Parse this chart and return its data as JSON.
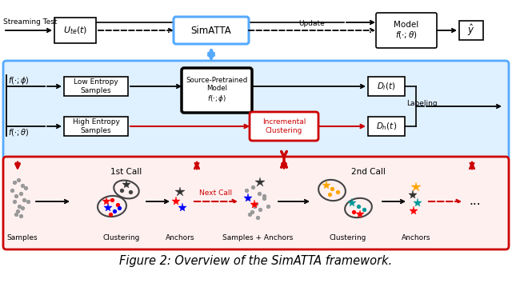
{
  "title": "Figure 2: Overview of the SimATTA framework.",
  "title_fontsize": 10.5,
  "fig_width": 6.4,
  "fig_height": 3.54,
  "bg_color": "#ffffff",
  "top": {
    "streaming_test": "Streaming Test",
    "ute": "$U_{te}(t)$",
    "simatta": "SimATTA",
    "model": "Model\n$f(\\cdot;\\theta)$",
    "yhat": "$\\hat{y}$",
    "update": "Update"
  },
  "mid": {
    "bg": "#dff0ff",
    "border": "#55aaff",
    "fphi": "$f(\\cdot;\\phi)$",
    "ftheta": "$f(\\cdot;\\theta)$",
    "low": "Low Entropy\nSamples",
    "high": "High Entropy\nSamples",
    "src": "Source-Pretrained\nModel\n$f(\\cdot;\\phi)$",
    "inc": "Incremental\nClustering",
    "dl": "$D_l(t)$",
    "dh": "$D_h(t)$",
    "labeling": "Labeling"
  },
  "bot": {
    "bg": "#fff0f0",
    "border": "#cc0000",
    "call1": "1st Call",
    "call2": "2nd Call",
    "next_call": "Next Call",
    "lbl_samples": "Samples",
    "lbl_clustering": "Clustering",
    "lbl_anchors": "Anchors",
    "lbl_sa": "Samples + Anchors",
    "lbl_clustering2": "Clustering",
    "lbl_anchors2": "Anchors",
    "dots": "..."
  }
}
